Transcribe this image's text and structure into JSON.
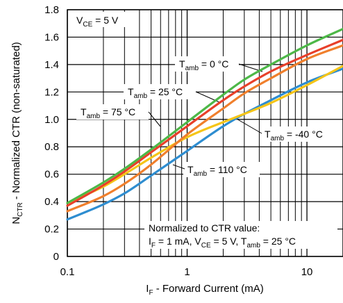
{
  "chart_data": {
    "type": "line",
    "x_scale": "log",
    "xlim": [
      0.1,
      20
    ],
    "ylim": [
      0,
      1.8
    ],
    "x_ticks": [
      0.1,
      1,
      10
    ],
    "x_tick_labels": [
      "0.1",
      "1",
      "10"
    ],
    "y_ticks": [
      0,
      0.2,
      0.4,
      0.6,
      0.8,
      1.0,
      1.2,
      1.4,
      1.6,
      1.8
    ],
    "y_tick_labels": [
      "0",
      "0.2",
      "0.4",
      "0.6",
      "0.8",
      "1.0",
      "1.2",
      "1.4",
      "1.6",
      "1.8"
    ],
    "grid": true,
    "xlabel": {
      "main": "I",
      "sub": "F",
      "rest": " - Forward Current (mA)"
    },
    "ylabel": {
      "main": "N",
      "sub": "CTR",
      "rest": " - Normalized CTR (non-saturated)"
    },
    "condition": {
      "main": "V",
      "sub": "CE",
      "rest": " = 5 V"
    },
    "note": {
      "line1": "Normalized to CTR value:",
      "line2": [
        {
          "main": "I",
          "sub": "F",
          "rest": " = 1 mA, "
        },
        {
          "main": "V",
          "sub": "CE",
          "rest": " = 5 V, "
        },
        {
          "main": "T",
          "sub": "amb",
          "rest": " = 25 °C"
        }
      ]
    },
    "series": [
      {
        "name": {
          "main": "T",
          "sub": "amb",
          "rest": " = -40 °C"
        },
        "color": "#f5c518",
        "x": [
          0.1,
          0.2,
          0.3,
          0.5,
          1,
          2,
          3,
          5,
          10,
          20
        ],
        "y": [
          0.39,
          0.51,
          0.6,
          0.72,
          0.87,
          0.98,
          1.04,
          1.12,
          1.25,
          1.39
        ]
      },
      {
        "name": {
          "main": "T",
          "sub": "amb",
          "rest": " = 0 °C"
        },
        "color": "#e8402a",
        "x": [
          0.1,
          0.2,
          0.3,
          0.5,
          1,
          2,
          3,
          5,
          10,
          20
        ],
        "y": [
          0.37,
          0.52,
          0.62,
          0.76,
          0.95,
          1.14,
          1.24,
          1.35,
          1.47,
          1.58
        ]
      },
      {
        "name": {
          "main": "T",
          "sub": "amb",
          "rest": " = 25 °C"
        },
        "color": "#4db848",
        "x": [
          0.1,
          0.2,
          0.3,
          0.5,
          1,
          2,
          3,
          5,
          10,
          20
        ],
        "y": [
          0.39,
          0.54,
          0.64,
          0.78,
          0.98,
          1.18,
          1.29,
          1.4,
          1.54,
          1.66
        ]
      },
      {
        "name": {
          "main": "T",
          "sub": "amb",
          "rest": " = 75 °C"
        },
        "color": "#f07f2c",
        "x": [
          0.1,
          0.2,
          0.3,
          0.5,
          1,
          2,
          3,
          5,
          10,
          20
        ],
        "y": [
          0.33,
          0.44,
          0.53,
          0.67,
          0.89,
          1.08,
          1.19,
          1.3,
          1.44,
          1.54
        ]
      },
      {
        "name": {
          "main": "T",
          "sub": "amb",
          "rest": " = 110 °C"
        },
        "color": "#2e8dd0",
        "x": [
          0.1,
          0.2,
          0.3,
          0.5,
          1,
          2,
          3,
          5,
          10,
          20
        ],
        "y": [
          0.27,
          0.38,
          0.46,
          0.59,
          0.77,
          0.95,
          1.04,
          1.14,
          1.27,
          1.37
        ]
      }
    ]
  }
}
